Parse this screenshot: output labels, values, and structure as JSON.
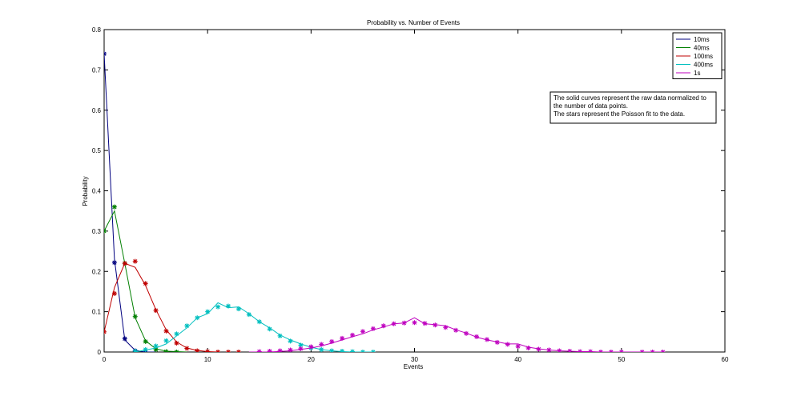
{
  "chart_data": {
    "type": "line",
    "title": "Probability vs. Number of Events",
    "xlabel": "Events",
    "ylabel": "Probability",
    "xlim": [
      0,
      60
    ],
    "ylim": [
      0,
      0.8
    ],
    "x_ticks": [
      "0",
      "10",
      "20",
      "30",
      "40",
      "50",
      "60"
    ],
    "y_ticks": [
      "0",
      "0.1",
      "0.2",
      "0.3",
      "0.4",
      "0.5",
      "0.6",
      "0.7",
      "0.8"
    ],
    "grid": false,
    "legend_position": "top-right",
    "annotation": [
      "The solid curves represent the raw data normalized to",
      "the number of data points.",
      "The stars represent the Poisson fit to the data."
    ],
    "series": [
      {
        "name": "10ms",
        "color": "#00007f",
        "raw": [
          [
            0,
            0.74
          ],
          [
            1,
            0.23
          ],
          [
            2,
            0.03
          ],
          [
            3,
            0.004
          ],
          [
            4,
            0.0
          ],
          [
            5,
            0.0
          ]
        ],
        "fit": [
          [
            0,
            0.74
          ],
          [
            1,
            0.222
          ],
          [
            2,
            0.033
          ],
          [
            3,
            0.003
          ],
          [
            4,
            0.0
          ]
        ]
      },
      {
        "name": "40ms",
        "color": "#007f00",
        "raw": [
          [
            0,
            0.3
          ],
          [
            1,
            0.35
          ],
          [
            2,
            0.22
          ],
          [
            3,
            0.085
          ],
          [
            4,
            0.028
          ],
          [
            5,
            0.008
          ],
          [
            6,
            0.002
          ],
          [
            7,
            0.001
          ],
          [
            8,
            0.0
          ]
        ],
        "fit": [
          [
            0,
            0.3
          ],
          [
            1,
            0.36
          ],
          [
            2,
            0.22
          ],
          [
            3,
            0.088
          ],
          [
            4,
            0.026
          ],
          [
            5,
            0.006
          ],
          [
            6,
            0.001
          ],
          [
            7,
            0.0
          ]
        ]
      },
      {
        "name": "100ms",
        "color": "#bf0000",
        "raw": [
          [
            0,
            0.05
          ],
          [
            1,
            0.16
          ],
          [
            2,
            0.22
          ],
          [
            3,
            0.21
          ],
          [
            4,
            0.165
          ],
          [
            5,
            0.105
          ],
          [
            6,
            0.055
          ],
          [
            7,
            0.025
          ],
          [
            8,
            0.01
          ],
          [
            9,
            0.004
          ],
          [
            10,
            0.001
          ],
          [
            11,
            0.0
          ]
        ],
        "fit": [
          [
            0,
            0.05
          ],
          [
            1,
            0.145
          ],
          [
            2,
            0.22
          ],
          [
            3,
            0.225
          ],
          [
            4,
            0.17
          ],
          [
            5,
            0.103
          ],
          [
            6,
            0.052
          ],
          [
            7,
            0.022
          ],
          [
            8,
            0.009
          ],
          [
            9,
            0.003
          ],
          [
            10,
            0.001
          ],
          [
            11,
            0.0
          ],
          [
            12,
            0.0
          ],
          [
            13,
            0.0
          ]
        ]
      },
      {
        "name": "400ms",
        "color": "#00bfbf",
        "raw": [
          [
            3,
            0.0
          ],
          [
            4,
            0.005
          ],
          [
            5,
            0.01
          ],
          [
            6,
            0.02
          ],
          [
            7,
            0.04
          ],
          [
            8,
            0.06
          ],
          [
            9,
            0.085
          ],
          [
            10,
            0.095
          ],
          [
            11,
            0.122
          ],
          [
            12,
            0.11
          ],
          [
            13,
            0.112
          ],
          [
            14,
            0.095
          ],
          [
            15,
            0.075
          ],
          [
            16,
            0.06
          ],
          [
            17,
            0.042
          ],
          [
            18,
            0.03
          ],
          [
            19,
            0.02
          ],
          [
            20,
            0.012
          ],
          [
            21,
            0.006
          ],
          [
            22,
            0.003
          ],
          [
            23,
            0.001
          ],
          [
            24,
            0.0
          ],
          [
            25,
            0.0
          ],
          [
            26,
            0.0
          ]
        ],
        "fit": [
          [
            3,
            0.002
          ],
          [
            4,
            0.006
          ],
          [
            5,
            0.015
          ],
          [
            6,
            0.028
          ],
          [
            7,
            0.045
          ],
          [
            8,
            0.065
          ],
          [
            9,
            0.085
          ],
          [
            10,
            0.1
          ],
          [
            11,
            0.112
          ],
          [
            12,
            0.114
          ],
          [
            13,
            0.107
          ],
          [
            14,
            0.093
          ],
          [
            15,
            0.075
          ],
          [
            16,
            0.057
          ],
          [
            17,
            0.04
          ],
          [
            18,
            0.027
          ],
          [
            19,
            0.017
          ],
          [
            20,
            0.01
          ],
          [
            21,
            0.006
          ],
          [
            22,
            0.003
          ],
          [
            23,
            0.002
          ],
          [
            24,
            0.001
          ],
          [
            25,
            0.0
          ],
          [
            26,
            0.0
          ]
        ]
      },
      {
        "name": "1s",
        "color": "#bf00bf",
        "raw": [
          [
            14,
            0.0
          ],
          [
            16,
            0.0
          ],
          [
            18,
            0.003
          ],
          [
            20,
            0.01
          ],
          [
            21,
            0.015
          ],
          [
            22,
            0.022
          ],
          [
            23,
            0.03
          ],
          [
            24,
            0.038
          ],
          [
            25,
            0.045
          ],
          [
            26,
            0.055
          ],
          [
            27,
            0.062
          ],
          [
            28,
            0.07
          ],
          [
            29,
            0.072
          ],
          [
            30,
            0.085
          ],
          [
            31,
            0.07
          ],
          [
            32,
            0.068
          ],
          [
            33,
            0.065
          ],
          [
            34,
            0.055
          ],
          [
            35,
            0.047
          ],
          [
            36,
            0.037
          ],
          [
            37,
            0.03
          ],
          [
            38,
            0.025
          ],
          [
            39,
            0.02
          ],
          [
            40,
            0.02
          ],
          [
            41,
            0.012
          ],
          [
            42,
            0.008
          ],
          [
            43,
            0.005
          ],
          [
            44,
            0.003
          ],
          [
            45,
            0.002
          ],
          [
            46,
            0.001
          ],
          [
            47,
            0.001
          ],
          [
            48,
            0.0
          ],
          [
            50,
            0.0
          ],
          [
            54,
            0.0
          ]
        ],
        "fit": [
          [
            15,
            0.001
          ],
          [
            16,
            0.002
          ],
          [
            17,
            0.003
          ],
          [
            18,
            0.005
          ],
          [
            19,
            0.008
          ],
          [
            20,
            0.013
          ],
          [
            21,
            0.019
          ],
          [
            22,
            0.026
          ],
          [
            23,
            0.034
          ],
          [
            24,
            0.042
          ],
          [
            25,
            0.051
          ],
          [
            26,
            0.058
          ],
          [
            27,
            0.065
          ],
          [
            28,
            0.07
          ],
          [
            29,
            0.072
          ],
          [
            30,
            0.073
          ],
          [
            31,
            0.071
          ],
          [
            32,
            0.067
          ],
          [
            33,
            0.061
          ],
          [
            34,
            0.054
          ],
          [
            35,
            0.046
          ],
          [
            36,
            0.038
          ],
          [
            37,
            0.031
          ],
          [
            38,
            0.024
          ],
          [
            39,
            0.019
          ],
          [
            40,
            0.014
          ],
          [
            41,
            0.01
          ],
          [
            42,
            0.007
          ],
          [
            43,
            0.005
          ],
          [
            44,
            0.003
          ],
          [
            45,
            0.002
          ],
          [
            46,
            0.001
          ],
          [
            47,
            0.001
          ],
          [
            48,
            0.0
          ],
          [
            49,
            0.0
          ],
          [
            50,
            0.0
          ],
          [
            52,
            0.0
          ],
          [
            53,
            0.0
          ],
          [
            54,
            0.0
          ]
        ]
      }
    ]
  }
}
